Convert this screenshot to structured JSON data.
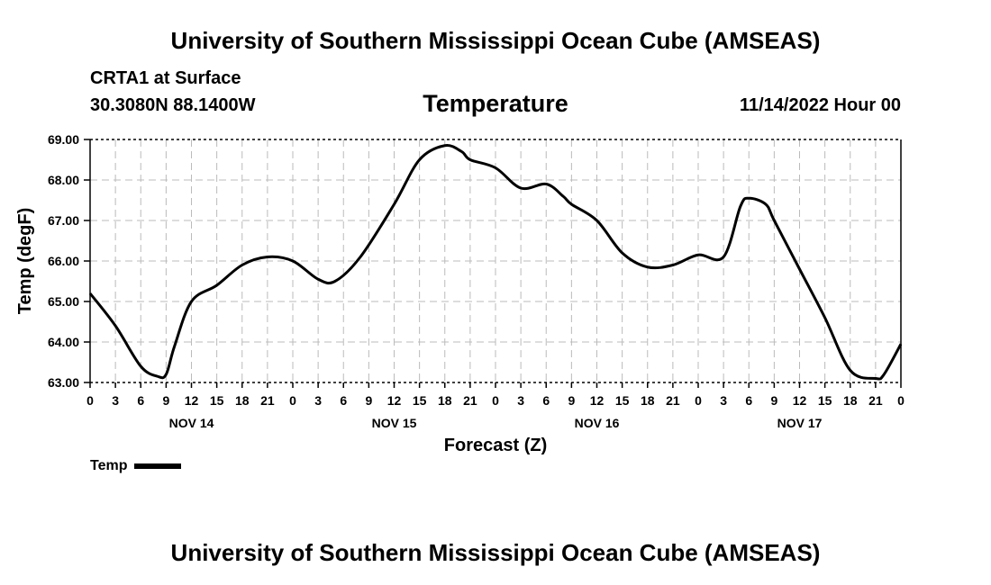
{
  "header": {
    "title_top": "University of Southern Mississippi Ocean Cube (AMSEAS)",
    "title_bottom": "University of Southern Mississippi Ocean Cube (AMSEAS)",
    "station": "CRTA1 at Surface",
    "coords": "30.3080N  88.1400W",
    "subtitle": "Temperature",
    "datetime": "11/14/2022 Hour 00"
  },
  "legend": {
    "label": "Temp"
  },
  "chart_data": {
    "type": "line",
    "title": "Temperature",
    "xlabel": "Forecast (Z)",
    "ylabel": "Temp (degF)",
    "ylim": [
      63.0,
      69.0
    ],
    "xlim": [
      0,
      96
    ],
    "grid": true,
    "y_ticks": [
      "63.00",
      "64.00",
      "65.00",
      "66.00",
      "67.00",
      "68.00",
      "69.00"
    ],
    "x_tick_labels": [
      "0",
      "3",
      "6",
      "9",
      "12",
      "15",
      "18",
      "21",
      "0",
      "3",
      "6",
      "9",
      "12",
      "15",
      "18",
      "21",
      "0",
      "3",
      "6",
      "9",
      "12",
      "15",
      "18",
      "21",
      "0",
      "3",
      "6",
      "9",
      "12",
      "15",
      "18",
      "21",
      "0"
    ],
    "day_labels": [
      {
        "label": "NOV 14",
        "hour": 12
      },
      {
        "label": "NOV 15",
        "hour": 36
      },
      {
        "label": "NOV 16",
        "hour": 60
      },
      {
        "label": "NOV 17",
        "hour": 84
      }
    ],
    "series": [
      {
        "name": "Temp",
        "x": [
          0,
          3,
          6,
          8,
          9,
          10,
          12,
          15,
          18,
          21,
          24,
          27,
          29,
          32,
          36,
          39,
          42,
          44,
          45,
          48,
          51,
          54,
          56,
          57,
          60,
          63,
          66,
          69,
          72,
          75,
          77,
          78,
          80,
          81,
          84,
          87,
          90,
          93,
          94,
          96
        ],
        "values": [
          65.2,
          64.4,
          63.4,
          63.15,
          63.2,
          63.9,
          65.0,
          65.4,
          65.9,
          66.1,
          66.0,
          65.55,
          65.5,
          66.1,
          67.4,
          68.5,
          68.85,
          68.7,
          68.5,
          68.3,
          67.8,
          67.9,
          67.6,
          67.4,
          67.0,
          66.2,
          65.85,
          65.9,
          66.15,
          66.1,
          67.35,
          67.55,
          67.4,
          67.0,
          65.8,
          64.6,
          63.3,
          63.1,
          63.2,
          63.95
        ]
      }
    ]
  }
}
